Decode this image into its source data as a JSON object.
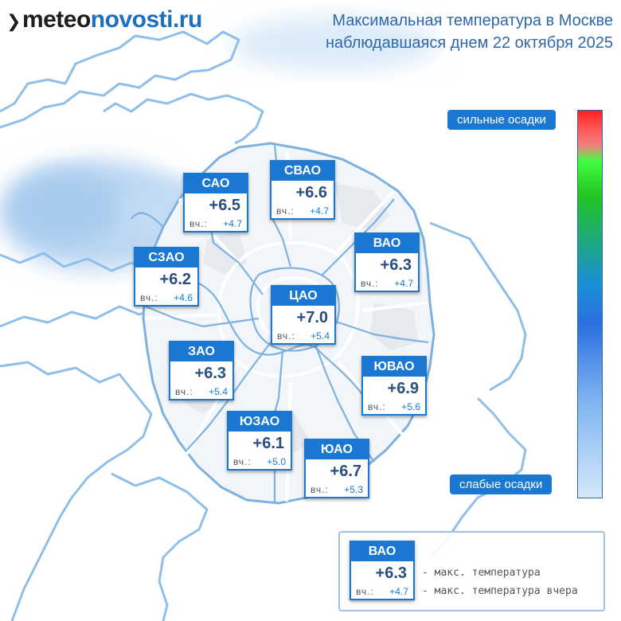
{
  "logo": {
    "part1": "meteo",
    "part2": "novosti.ru"
  },
  "title": {
    "line1": "Максимальная температура в Москве",
    "line2": "наблюдавшаяся днем 22 октября 2025"
  },
  "precip_scale": {
    "top_label": "сильные осадки",
    "bottom_label": "слабые осадки",
    "colors": [
      "#ff2020",
      "#f08080",
      "#40ff40",
      "#1a8dd8",
      "#2b6fe0",
      "#d5e8fb"
    ]
  },
  "accent_color": "#1a78d2",
  "yesterday_prefix": "вч.:",
  "districts": [
    {
      "name": "САО",
      "temp": "+6.5",
      "yesterday": "+4.7"
    },
    {
      "name": "СВАО",
      "temp": "+6.6",
      "yesterday": "+4.7"
    },
    {
      "name": "ВАО",
      "temp": "+6.3",
      "yesterday": "+4.7"
    },
    {
      "name": "СЗАО",
      "temp": "+6.2",
      "yesterday": "+4.6"
    },
    {
      "name": "ЦАО",
      "temp": "+7.0",
      "yesterday": "+5.4"
    },
    {
      "name": "ЗАО",
      "temp": "+6.3",
      "yesterday": "+5.4"
    },
    {
      "name": "ЮВАО",
      "temp": "+6.9",
      "yesterday": "+5.6"
    },
    {
      "name": "ЮЗАО",
      "temp": "+6.1",
      "yesterday": "+5.0"
    },
    {
      "name": "ЮАО",
      "temp": "+6.7",
      "yesterday": "+5.3"
    }
  ],
  "legend": {
    "sample": {
      "name": "ВАО",
      "temp": "+6.3",
      "yesterday": "+4.7"
    },
    "max_temp_desc": "- макс. температура",
    "max_temp_yesterday_desc": "- макс. температура вчера"
  }
}
